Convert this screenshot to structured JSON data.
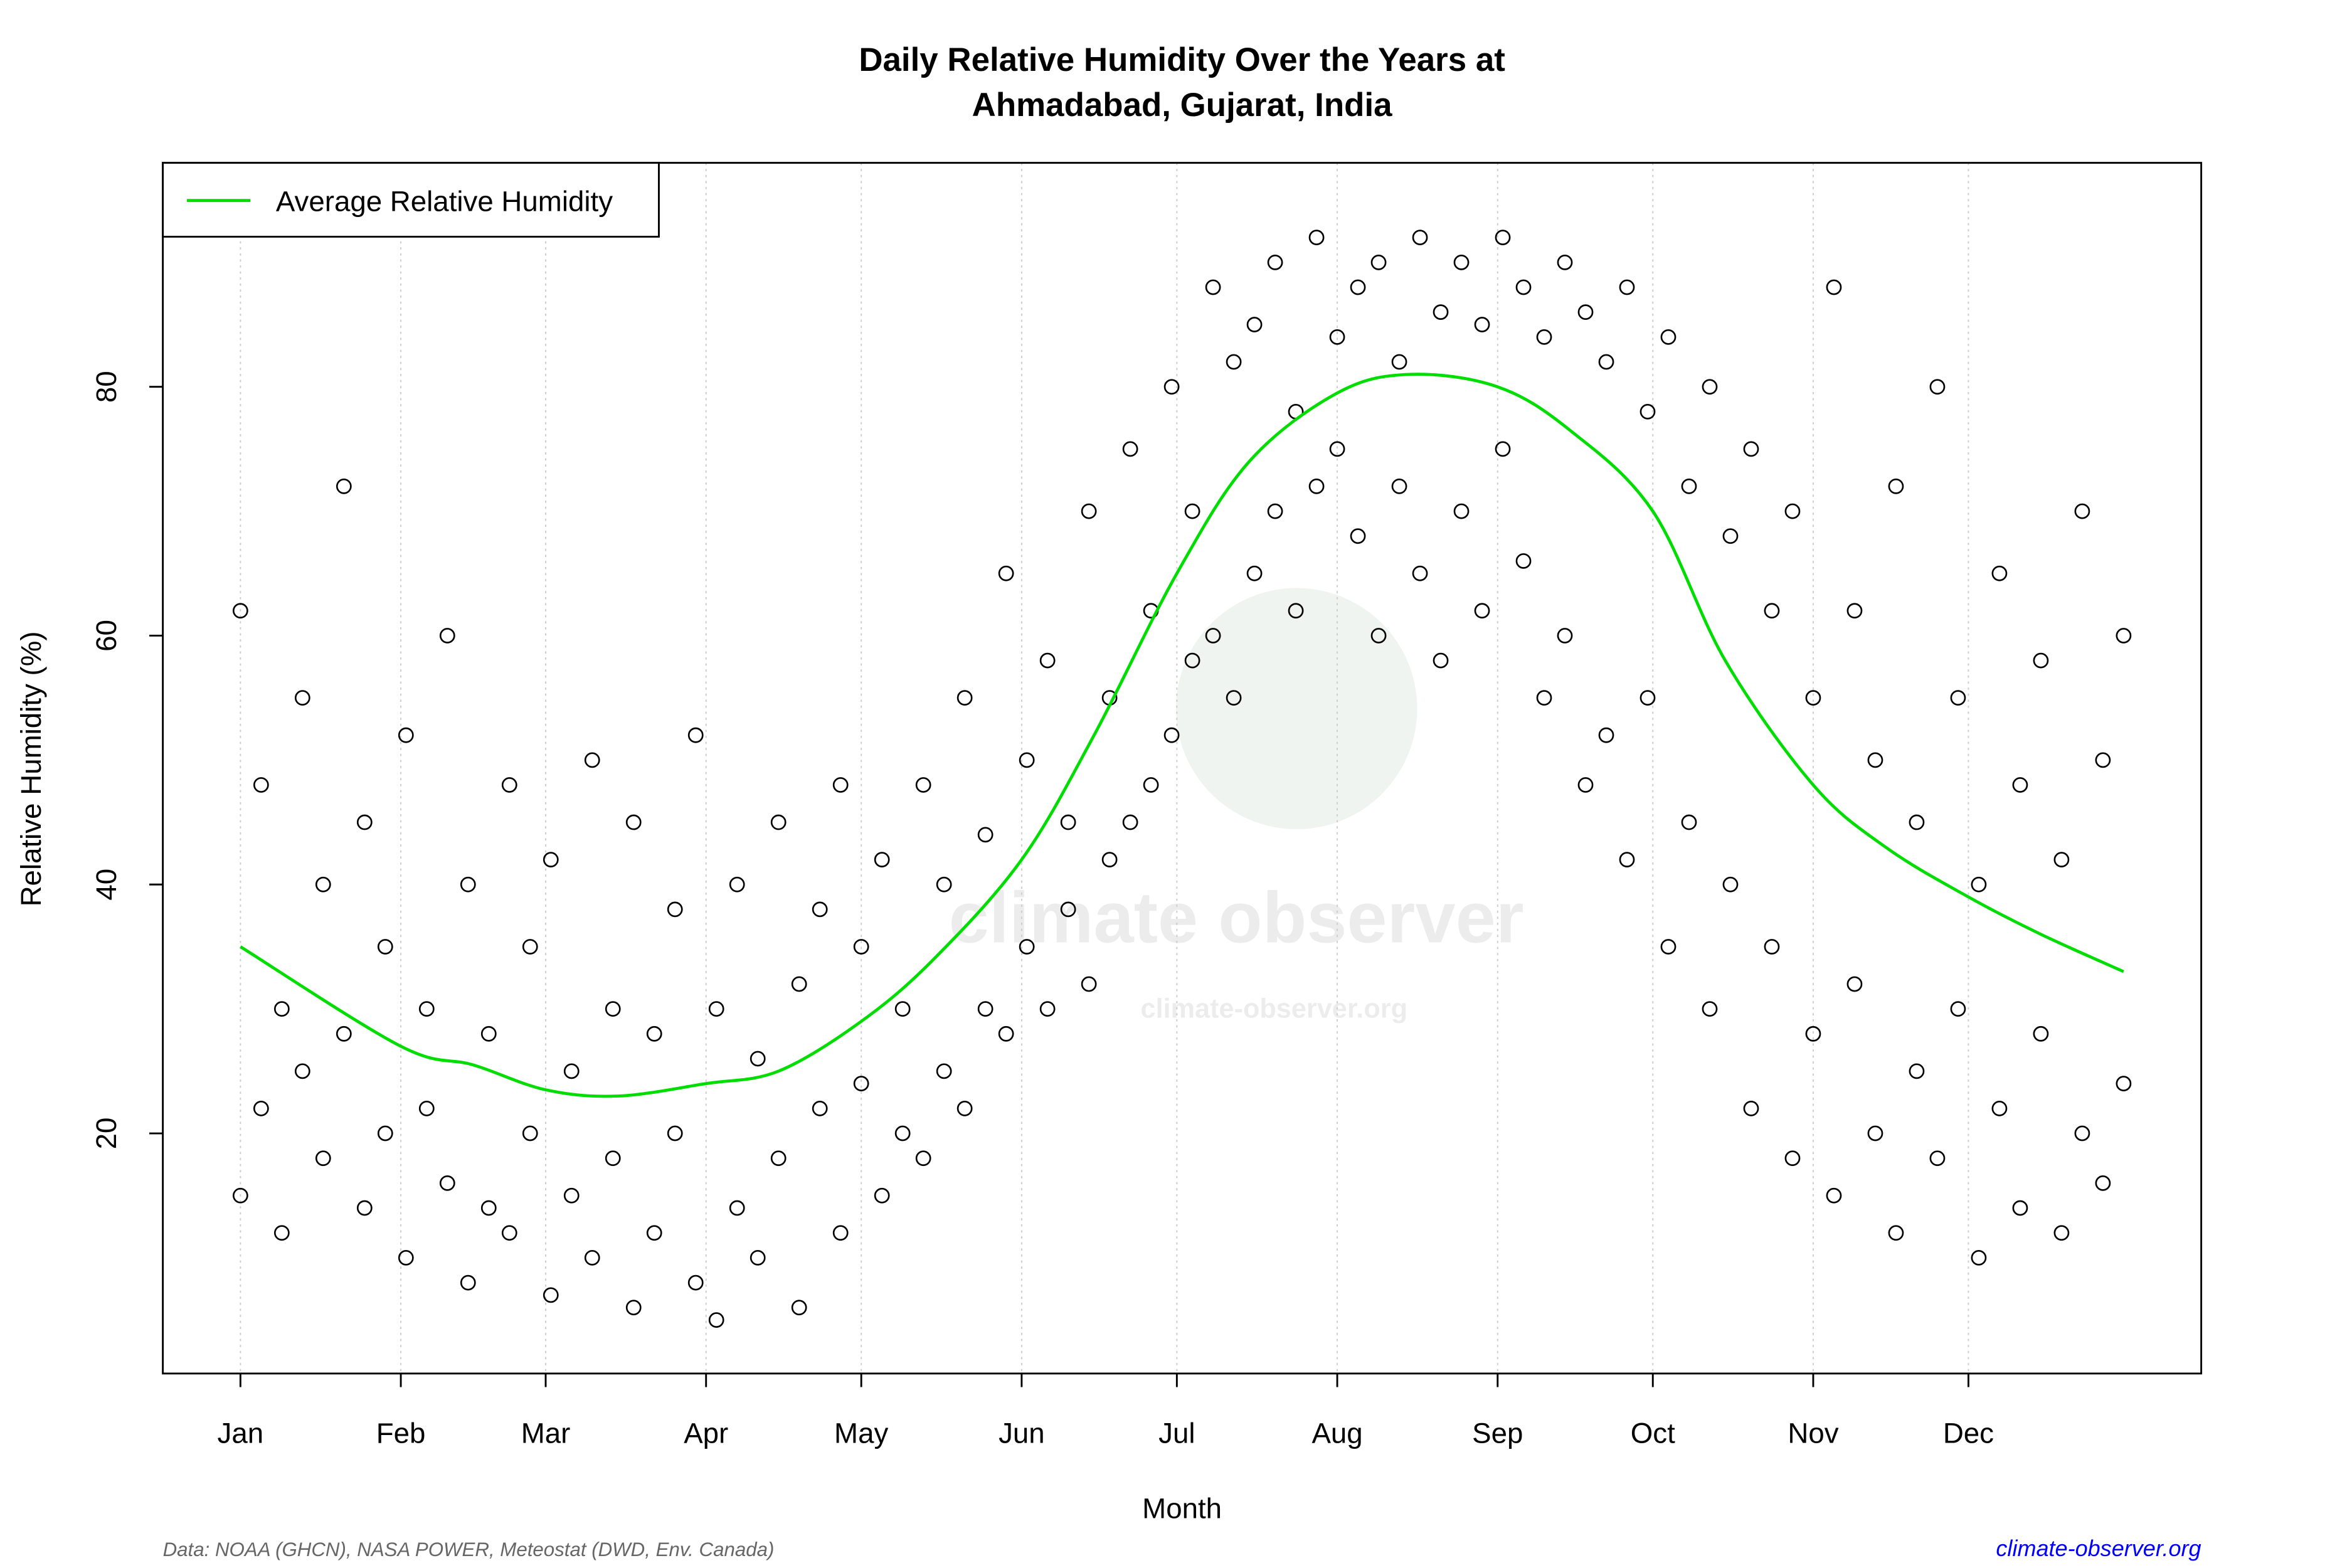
{
  "chart_data": {
    "type": "scatter",
    "title": [
      "Daily Relative Humidity Over the Years at",
      "Ahmadabad, Gujarat, India"
    ],
    "xlabel": "Month",
    "ylabel": "Relative Humidity  (%)",
    "xlim": [
      -14,
      380
    ],
    "ylim": [
      0.7,
      98
    ],
    "grid": "vertical dotted at month ticks",
    "x_ticks": [
      {
        "label": "Jan",
        "day": 1
      },
      {
        "label": "Feb",
        "day": 32
      },
      {
        "label": "Mar",
        "day": 60
      },
      {
        "label": "Apr",
        "day": 91
      },
      {
        "label": "May",
        "day": 121
      },
      {
        "label": "Jun",
        "day": 152
      },
      {
        "label": "Jul",
        "day": 182
      },
      {
        "label": "Aug",
        "day": 213
      },
      {
        "label": "Sep",
        "day": 244
      },
      {
        "label": "Oct",
        "day": 274
      },
      {
        "label": "Nov",
        "day": 305
      },
      {
        "label": "Dec",
        "day": 335
      }
    ],
    "y_ticks": [
      20,
      40,
      60,
      80
    ],
    "legend": {
      "position": "top-left",
      "label": "Average Relative Humidity"
    },
    "colors": {
      "points": "#000000",
      "average": "#00dd00",
      "footer_source": "#666666",
      "footer_link": "#0000ff"
    },
    "average_series": {
      "name": "Average Relative Humidity",
      "points": [
        [
          1,
          35
        ],
        [
          32,
          27
        ],
        [
          46,
          25.5
        ],
        [
          60,
          23.5
        ],
        [
          74,
          23
        ],
        [
          91,
          24
        ],
        [
          105,
          25
        ],
        [
          121,
          29
        ],
        [
          135,
          34
        ],
        [
          152,
          42
        ],
        [
          166,
          52
        ],
        [
          182,
          65
        ],
        [
          196,
          74
        ],
        [
          213,
          79.5
        ],
        [
          227,
          81
        ],
        [
          244,
          80
        ],
        [
          258,
          76.5
        ],
        [
          274,
          70
        ],
        [
          288,
          58
        ],
        [
          305,
          48
        ],
        [
          319,
          43
        ],
        [
          335,
          39
        ],
        [
          349,
          36
        ],
        [
          365,
          33
        ]
      ]
    },
    "points": [
      [
        1,
        62
      ],
      [
        1,
        15
      ],
      [
        5,
        48
      ],
      [
        5,
        22
      ],
      [
        9,
        30
      ],
      [
        9,
        12
      ],
      [
        13,
        55
      ],
      [
        13,
        25
      ],
      [
        17,
        40
      ],
      [
        17,
        18
      ],
      [
        21,
        72
      ],
      [
        21,
        28
      ],
      [
        25,
        45
      ],
      [
        25,
        14
      ],
      [
        29,
        35
      ],
      [
        29,
        20
      ],
      [
        33,
        52
      ],
      [
        33,
        10
      ],
      [
        37,
        30
      ],
      [
        37,
        22
      ],
      [
        41,
        60
      ],
      [
        41,
        16
      ],
      [
        45,
        40
      ],
      [
        45,
        8
      ],
      [
        49,
        28
      ],
      [
        49,
        14
      ],
      [
        53,
        48
      ],
      [
        53,
        12
      ],
      [
        57,
        35
      ],
      [
        57,
        20
      ],
      [
        61,
        42
      ],
      [
        61,
        7
      ],
      [
        65,
        25
      ],
      [
        65,
        15
      ],
      [
        69,
        50
      ],
      [
        69,
        10
      ],
      [
        73,
        30
      ],
      [
        73,
        18
      ],
      [
        77,
        45
      ],
      [
        77,
        6
      ],
      [
        81,
        28
      ],
      [
        81,
        12
      ],
      [
        85,
        38
      ],
      [
        85,
        20
      ],
      [
        89,
        52
      ],
      [
        89,
        8
      ],
      [
        93,
        30
      ],
      [
        93,
        5
      ],
      [
        97,
        40
      ],
      [
        97,
        14
      ],
      [
        101,
        26
      ],
      [
        101,
        10
      ],
      [
        105,
        45
      ],
      [
        105,
        18
      ],
      [
        109,
        32
      ],
      [
        109,
        6
      ],
      [
        113,
        38
      ],
      [
        113,
        22
      ],
      [
        117,
        48
      ],
      [
        117,
        12
      ],
      [
        121,
        35
      ],
      [
        121,
        24
      ],
      [
        125,
        42
      ],
      [
        125,
        15
      ],
      [
        129,
        30
      ],
      [
        129,
        20
      ],
      [
        133,
        48
      ],
      [
        133,
        18
      ],
      [
        137,
        40
      ],
      [
        137,
        25
      ],
      [
        141,
        55
      ],
      [
        141,
        22
      ],
      [
        145,
        44
      ],
      [
        145,
        30
      ],
      [
        149,
        65
      ],
      [
        149,
        28
      ],
      [
        153,
        50
      ],
      [
        153,
        35
      ],
      [
        157,
        58
      ],
      [
        157,
        30
      ],
      [
        161,
        45
      ],
      [
        161,
        38
      ],
      [
        165,
        70
      ],
      [
        165,
        32
      ],
      [
        169,
        55
      ],
      [
        169,
        42
      ],
      [
        173,
        75
      ],
      [
        173,
        45
      ],
      [
        177,
        62
      ],
      [
        177,
        48
      ],
      [
        181,
        80
      ],
      [
        181,
        52
      ],
      [
        185,
        70
      ],
      [
        185,
        58
      ],
      [
        189,
        88
      ],
      [
        189,
        60
      ],
      [
        193,
        82
      ],
      [
        193,
        55
      ],
      [
        197,
        85
      ],
      [
        197,
        65
      ],
      [
        201,
        90
      ],
      [
        201,
        70
      ],
      [
        205,
        78
      ],
      [
        205,
        62
      ],
      [
        209,
        92
      ],
      [
        209,
        72
      ],
      [
        213,
        84
      ],
      [
        213,
        75
      ],
      [
        217,
        88
      ],
      [
        217,
        68
      ],
      [
        221,
        90
      ],
      [
        221,
        60
      ],
      [
        225,
        82
      ],
      [
        225,
        72
      ],
      [
        229,
        92
      ],
      [
        229,
        65
      ],
      [
        233,
        86
      ],
      [
        233,
        58
      ],
      [
        237,
        90
      ],
      [
        237,
        70
      ],
      [
        241,
        85
      ],
      [
        241,
        62
      ],
      [
        245,
        92
      ],
      [
        245,
        75
      ],
      [
        249,
        88
      ],
      [
        249,
        66
      ],
      [
        253,
        84
      ],
      [
        253,
        55
      ],
      [
        257,
        90
      ],
      [
        257,
        60
      ],
      [
        261,
        86
      ],
      [
        261,
        48
      ],
      [
        265,
        82
      ],
      [
        265,
        52
      ],
      [
        269,
        88
      ],
      [
        269,
        42
      ],
      [
        273,
        78
      ],
      [
        273,
        55
      ],
      [
        277,
        84
      ],
      [
        277,
        35
      ],
      [
        281,
        72
      ],
      [
        281,
        45
      ],
      [
        285,
        80
      ],
      [
        285,
        30
      ],
      [
        289,
        68
      ],
      [
        289,
        40
      ],
      [
        293,
        75
      ],
      [
        293,
        22
      ],
      [
        297,
        62
      ],
      [
        297,
        35
      ],
      [
        301,
        70
      ],
      [
        301,
        18
      ],
      [
        305,
        55
      ],
      [
        305,
        28
      ],
      [
        309,
        88
      ],
      [
        309,
        15
      ],
      [
        313,
        62
      ],
      [
        313,
        32
      ],
      [
        317,
        50
      ],
      [
        317,
        20
      ],
      [
        321,
        72
      ],
      [
        321,
        12
      ],
      [
        325,
        45
      ],
      [
        325,
        25
      ],
      [
        329,
        80
      ],
      [
        329,
        18
      ],
      [
        333,
        55
      ],
      [
        333,
        30
      ],
      [
        337,
        40
      ],
      [
        337,
        10
      ],
      [
        341,
        65
      ],
      [
        341,
        22
      ],
      [
        345,
        48
      ],
      [
        345,
        14
      ],
      [
        349,
        58
      ],
      [
        349,
        28
      ],
      [
        353,
        42
      ],
      [
        353,
        12
      ],
      [
        357,
        70
      ],
      [
        357,
        20
      ],
      [
        361,
        50
      ],
      [
        361,
        16
      ],
      [
        365,
        60
      ],
      [
        365,
        24
      ]
    ]
  },
  "watermark": {
    "brand": "climate observer",
    "url": "climate-observer.org"
  },
  "footer": {
    "source": "Data: NOAA (GHCN), NASA POWER, Meteostat (DWD, Env. Canada)",
    "link": "climate-observer.org"
  }
}
